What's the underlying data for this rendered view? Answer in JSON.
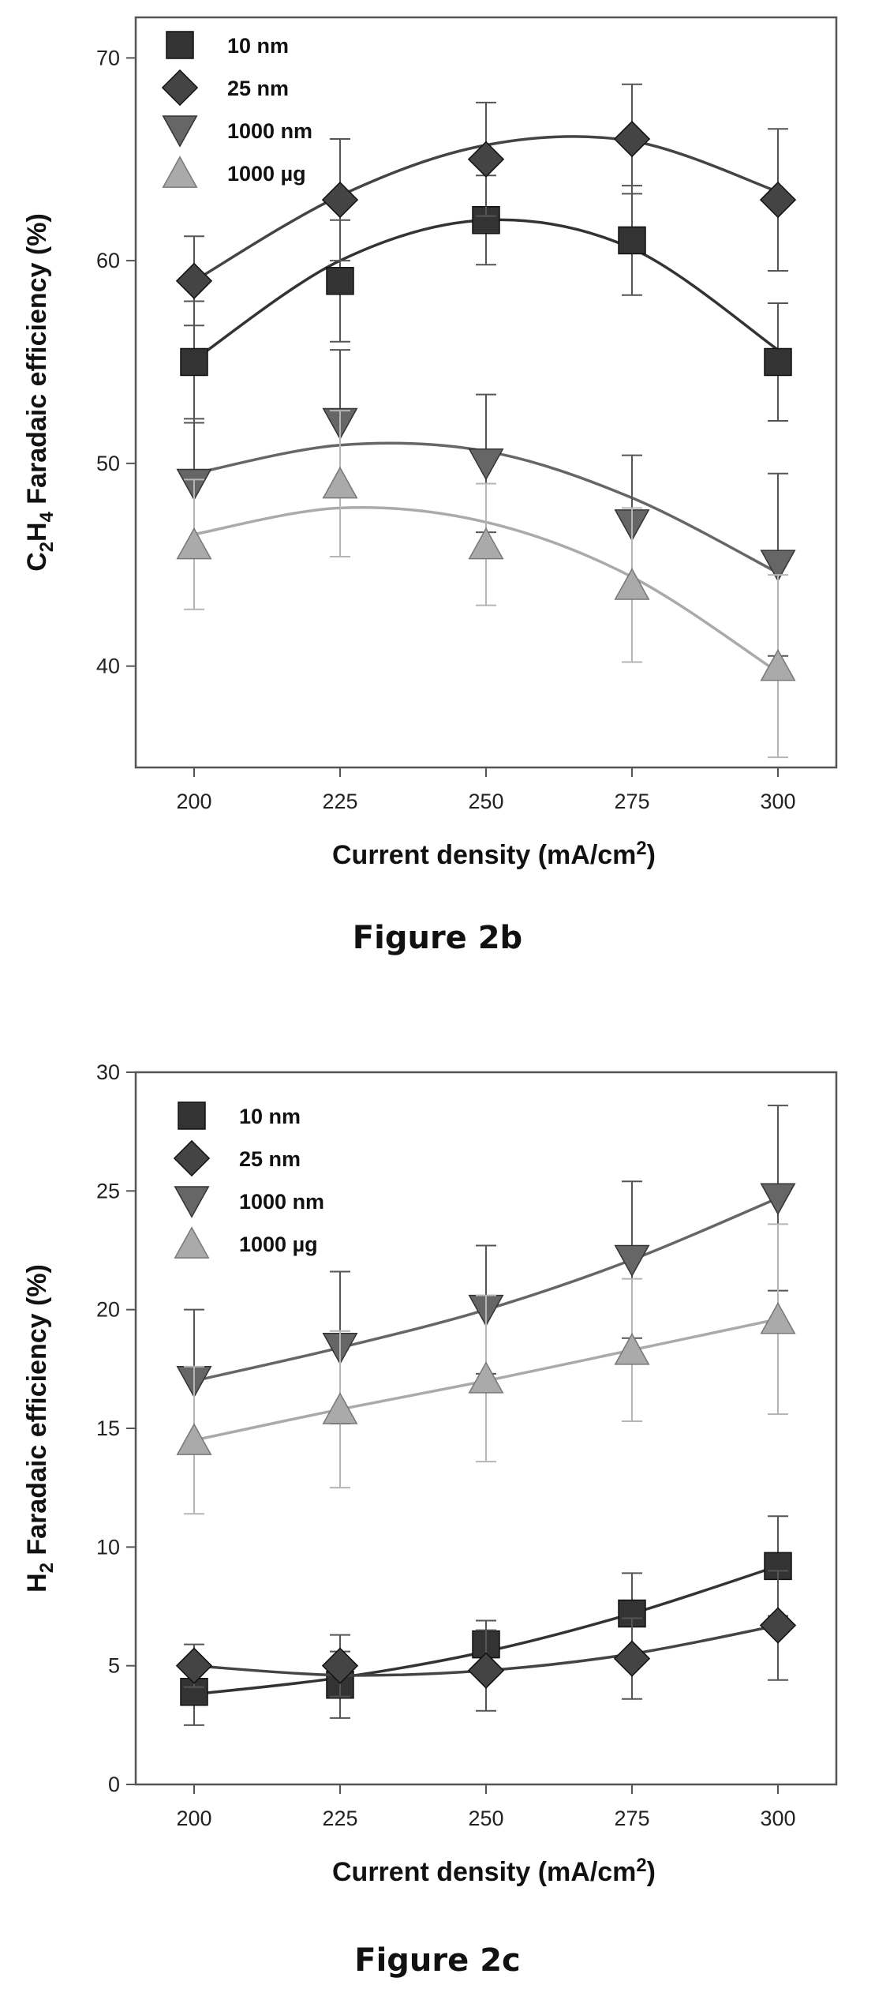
{
  "chart_data": [
    {
      "type": "scatter",
      "caption": "Figure 2b",
      "xlabel": "Current density (mA/cm2)",
      "ylabel": "C2H4 Faradaic efficiency (%)",
      "xlim": [
        190,
        310
      ],
      "ylim": [
        35,
        72
      ],
      "x_ticks": [
        200,
        225,
        250,
        275,
        300
      ],
      "y_ticks": [
        40,
        50,
        60,
        70
      ],
      "legend_position": "top-left",
      "grid": false,
      "series": [
        {
          "name": "10 nm",
          "marker": "square",
          "color": "#333333",
          "x": [
            200,
            225,
            250,
            275,
            300
          ],
          "y": [
            55,
            59,
            62,
            61,
            55
          ],
          "err": [
            3.0,
            3.0,
            2.2,
            2.7,
            2.9
          ],
          "fit": [
            55.1,
            60.0,
            62.0,
            60.6,
            55.6
          ]
        },
        {
          "name": "25 nm",
          "marker": "diamond",
          "color": "#444444",
          "x": [
            200,
            225,
            250,
            275,
            300
          ],
          "y": [
            59,
            63,
            65,
            66,
            63
          ],
          "err": [
            2.2,
            3.0,
            2.8,
            2.7,
            3.5
          ],
          "fit": [
            59.0,
            63.2,
            65.7,
            65.9,
            63.4
          ]
        },
        {
          "name": "1000 nm",
          "marker": "triangle-down",
          "color": "#666666",
          "x": [
            200,
            225,
            250,
            275,
            300
          ],
          "y": [
            49,
            52,
            50,
            47,
            45
          ],
          "err": [
            3.2,
            3.6,
            3.4,
            3.4,
            4.5
          ],
          "fit": [
            49.5,
            50.9,
            50.6,
            48.3,
            44.6
          ]
        },
        {
          "name": "1000 µg",
          "marker": "triangle-up",
          "color": "#aaaaaa",
          "x": [
            200,
            225,
            250,
            275,
            300
          ],
          "y": [
            46,
            49,
            46,
            44,
            40
          ],
          "err": [
            3.2,
            3.6,
            3.0,
            3.8,
            4.5
          ],
          "fit": [
            46.5,
            47.8,
            47.1,
            44.4,
            39.7
          ]
        }
      ]
    },
    {
      "type": "scatter",
      "caption": "Figure 2c",
      "xlabel": "Current density (mA/cm2)",
      "ylabel": "H2 Faradaic efficiency (%)",
      "xlim": [
        190,
        310
      ],
      "ylim": [
        0,
        30
      ],
      "x_ticks": [
        200,
        225,
        250,
        275,
        300
      ],
      "y_ticks": [
        0,
        5,
        10,
        15,
        20,
        25,
        30
      ],
      "legend_position": "top-left",
      "grid": false,
      "series": [
        {
          "name": "10 nm",
          "marker": "square",
          "color": "#333333",
          "x": [
            200,
            225,
            250,
            275,
            300
          ],
          "y": [
            3.9,
            4.2,
            5.9,
            7.2,
            9.2
          ],
          "err": [
            1.4,
            1.4,
            1.0,
            1.7,
            2.1
          ],
          "fit": [
            3.8,
            4.5,
            5.6,
            7.2,
            9.2
          ]
        },
        {
          "name": "25 nm",
          "marker": "diamond",
          "color": "#444444",
          "x": [
            200,
            225,
            250,
            275,
            300
          ],
          "y": [
            5.0,
            5.0,
            4.8,
            5.3,
            6.7
          ],
          "err": [
            0.9,
            1.3,
            1.7,
            1.7,
            2.3
          ],
          "fit": [
            5.0,
            4.6,
            4.8,
            5.5,
            6.7
          ]
        },
        {
          "name": "1000 nm",
          "marker": "triangle-down",
          "color": "#666666",
          "x": [
            200,
            225,
            250,
            275,
            300
          ],
          "y": [
            17.0,
            18.4,
            20.0,
            22.1,
            24.7
          ],
          "err": [
            3.0,
            3.2,
            2.7,
            3.3,
            3.9
          ],
          "fit": [
            17.0,
            18.4,
            20.0,
            22.1,
            24.7
          ]
        },
        {
          "name": "1000 µg",
          "marker": "triangle-up",
          "color": "#aaaaaa",
          "x": [
            200,
            225,
            250,
            275,
            300
          ],
          "y": [
            14.5,
            15.8,
            17.1,
            18.3,
            19.6
          ],
          "err": [
            3.1,
            3.3,
            3.5,
            3.0,
            4.0
          ],
          "fit": [
            14.5,
            15.8,
            17.0,
            18.3,
            19.6
          ]
        }
      ]
    }
  ]
}
